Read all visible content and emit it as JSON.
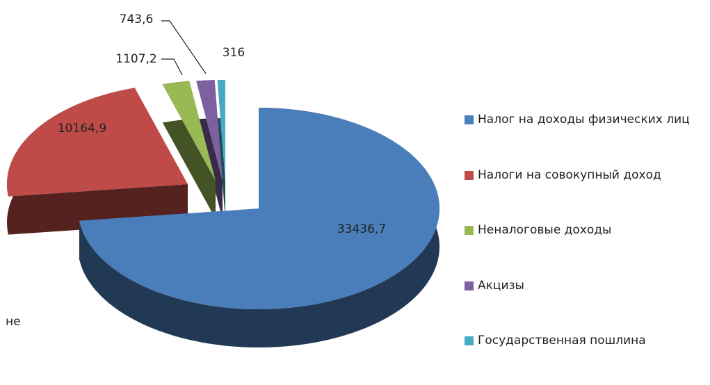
{
  "chart_data": {
    "type": "pie3d",
    "categories": [
      "Налог на доходы физических лиц",
      "Налоги на совокупный доход",
      "Неналоговые доходы",
      "Акцизы",
      "Государственная пошлина"
    ],
    "values": [
      33436.7,
      10164.9,
      1107.2,
      743.6,
      316
    ],
    "value_labels": [
      "33436,7",
      "10164,9",
      "1107,2",
      "743,6",
      "316"
    ],
    "colors": [
      "#4a7ebb",
      "#be4b48",
      "#98b954",
      "#7d60a0",
      "#46aac5"
    ],
    "legend": "right",
    "annotations": [
      "не"
    ]
  }
}
